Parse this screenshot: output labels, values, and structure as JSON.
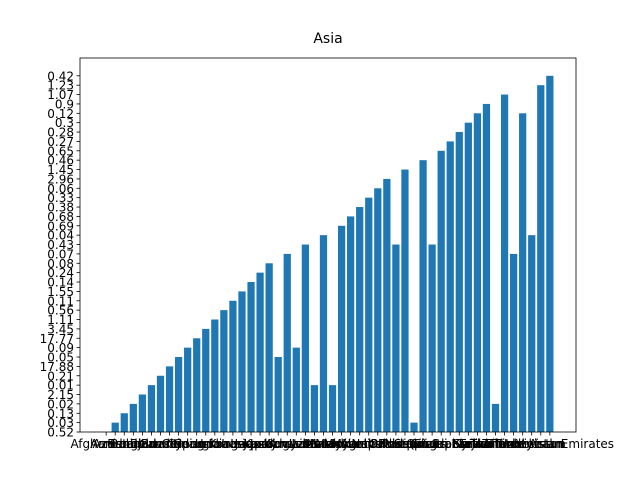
{
  "chart_data": {
    "type": "bar",
    "title": "Asia",
    "categories": [
      "Afghanistan",
      "Armenia",
      "Azerbaijan",
      "Bahrain",
      "Bangladesh",
      "Bhutan",
      "Brunei",
      "Cambodia",
      "China",
      "Cyprus",
      "Georgia",
      "Hong Kong",
      "India",
      "Indonesia",
      "Iran",
      "Iraq",
      "Israel",
      "Japan",
      "Jordan",
      "Kazakhstan",
      "Kuwait",
      "Kyrgyzstan",
      "Laos",
      "Lebanon",
      "Macao",
      "Malaysia",
      "Maldives",
      "Mongolia",
      "Myanmar",
      "Nepal",
      "North Korea",
      "Oman",
      "Pakistan",
      "Palestine",
      "Philippines",
      "Qatar",
      "Saudi Arabia",
      "Singapore",
      "South Korea",
      "Sri Lanka",
      "Syria",
      "Taiwan",
      "Tajikistan",
      "Thailand",
      "Timor",
      "Turkey",
      "Turkmenistan",
      "Uzbekistan",
      "Vietnam",
      "United Arab Emirates"
    ],
    "values": [
      0,
      1,
      2,
      3,
      4,
      5,
      6,
      7,
      8,
      9,
      10,
      11,
      12,
      13,
      14,
      15,
      16,
      17,
      18,
      8,
      19,
      9,
      20,
      5,
      21,
      5,
      22,
      23,
      24,
      25,
      26,
      27,
      20,
      28,
      1,
      29,
      20,
      30,
      31,
      32,
      33,
      34,
      35,
      3,
      36,
      19,
      34,
      21,
      37,
      38
    ],
    "color": "#1f77b4",
    "ylim": [
      0,
      39.9
    ],
    "yticks": [
      {
        "value": 0,
        "label": "0.52"
      },
      {
        "value": 1,
        "label": "0.03"
      },
      {
        "value": 2,
        "label": "0.13"
      },
      {
        "value": 3,
        "label": "0.02"
      },
      {
        "value": 4,
        "label": "2.15"
      },
      {
        "value": 5,
        "label": "0.01"
      },
      {
        "value": 6,
        "label": "0.21"
      },
      {
        "value": 7,
        "label": "17.88"
      },
      {
        "value": 8,
        "label": "0.05"
      },
      {
        "value": 9,
        "label": "0.09"
      },
      {
        "value": 10,
        "label": "17.77"
      },
      {
        "value": 11,
        "label": "3.45"
      },
      {
        "value": 12,
        "label": "1.11"
      },
      {
        "value": 13,
        "label": "0.56"
      },
      {
        "value": 14,
        "label": "0.11"
      },
      {
        "value": 15,
        "label": "1.55"
      },
      {
        "value": 16,
        "label": "0.14"
      },
      {
        "value": 17,
        "label": "0.24"
      },
      {
        "value": 18,
        "label": "0.08"
      },
      {
        "value": 19,
        "label": "0.07"
      },
      {
        "value": 20,
        "label": "0.43"
      },
      {
        "value": 21,
        "label": "0.04"
      },
      {
        "value": 22,
        "label": "0.69"
      },
      {
        "value": 23,
        "label": "0.68"
      },
      {
        "value": 24,
        "label": "0.38"
      },
      {
        "value": 25,
        "label": "0.33"
      },
      {
        "value": 26,
        "label": "0.06"
      },
      {
        "value": 27,
        "label": "2.96"
      },
      {
        "value": 28,
        "label": "1.45"
      },
      {
        "value": 29,
        "label": "0.46"
      },
      {
        "value": 30,
        "label": "0.65"
      },
      {
        "value": 31,
        "label": "0.27"
      },
      {
        "value": 32,
        "label": "0.28"
      },
      {
        "value": 33,
        "label": "0.3"
      },
      {
        "value": 34,
        "label": "0.12"
      },
      {
        "value": 35,
        "label": "0.9"
      },
      {
        "value": 36,
        "label": "1.07"
      },
      {
        "value": 37,
        "label": "1.23"
      },
      {
        "value": 38,
        "label": "0.42"
      }
    ]
  }
}
